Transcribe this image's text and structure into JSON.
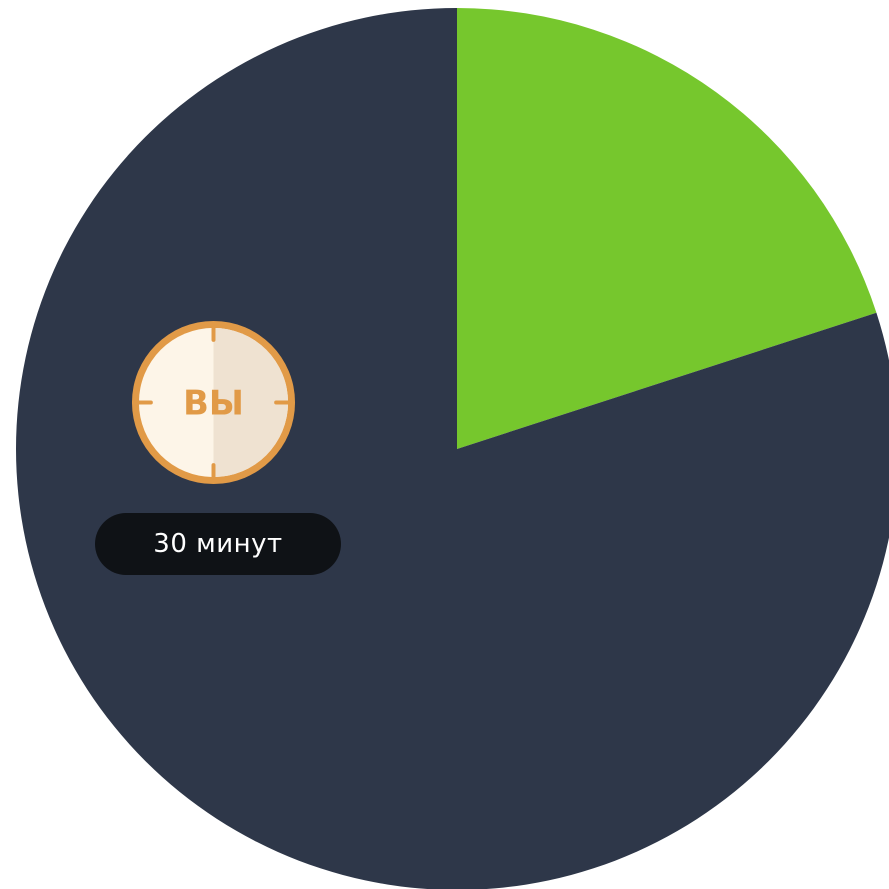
{
  "chart_data": {
    "type": "pie",
    "title": "",
    "start_angle_deg": 0,
    "direction": "clockwise",
    "slices": [
      {
        "value": 20,
        "color": "#76c72d"
      },
      {
        "value": 80,
        "color": "#2e3749"
      }
    ],
    "annotation": {
      "icon": "clock-icon",
      "badge_text": "ВЫ",
      "label": "30 минут"
    }
  },
  "colors": {
    "clock_ring": "#e19a47",
    "clock_face_light": "#fdf5e8",
    "clock_face_shade": "#efe2d1",
    "clock_text": "#e19a47",
    "pill_bg": "#0f1216",
    "pill_text": "#ffffff"
  }
}
